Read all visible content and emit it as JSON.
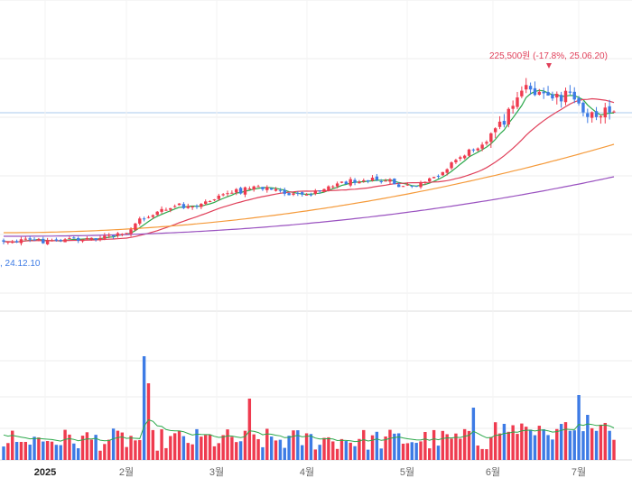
{
  "chart_data": {
    "type": "candlestick",
    "annotations": {
      "high_label": "225,500원 (-17.8%, 25.06.20)",
      "low_label": ", 24.12.10"
    },
    "x_axis_labels": [
      {
        "label": "2025",
        "date": "2025-01-01"
      },
      {
        "label": "2월",
        "date": "2025-02-01"
      },
      {
        "label": "3월",
        "date": "2025-03-01"
      },
      {
        "label": "4월",
        "date": "2025-04-01"
      },
      {
        "label": "5월",
        "date": "2025-05-01"
      },
      {
        "label": "6월",
        "date": "2025-06-01"
      },
      {
        "label": "7월",
        "date": "2025-07-01"
      }
    ],
    "legend": [],
    "colors": {
      "up": "#ef3b4f",
      "down": "#3d7be5",
      "ma5": "#2ba84a",
      "ma20": "#e0405a",
      "ma60": "#f59a3a",
      "ma120": "#9a52c0",
      "volume_ma": "#2ba84a",
      "annotation_high": "#e0405a",
      "annotation_low": "#3d7be5",
      "grid": "#eeeeee",
      "current_price_line": "#a9c8ee"
    }
  }
}
